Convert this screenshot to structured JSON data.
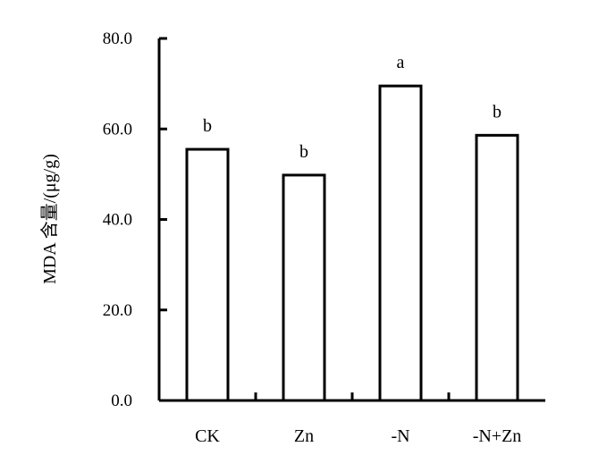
{
  "chart_data": {
    "type": "bar",
    "title": "",
    "xlabel": "",
    "ylabel": "MDA 含量/(μg/g)",
    "ylim": [
      0,
      80
    ],
    "yticks": [
      0,
      20,
      40,
      60,
      80
    ],
    "ytick_labels": [
      "0.0",
      "20.0",
      "40.0",
      "60.0",
      "80.0"
    ],
    "categories": [
      "CK",
      "Zn",
      "-N",
      "-N+Zn"
    ],
    "values": [
      55.5,
      49.8,
      69.5,
      58.6
    ],
    "significance_letters": [
      "b",
      "b",
      "a",
      "b"
    ],
    "grid": false,
    "legend": "none",
    "bar_fill": "#ffffff",
    "bar_edge": "#000000"
  }
}
